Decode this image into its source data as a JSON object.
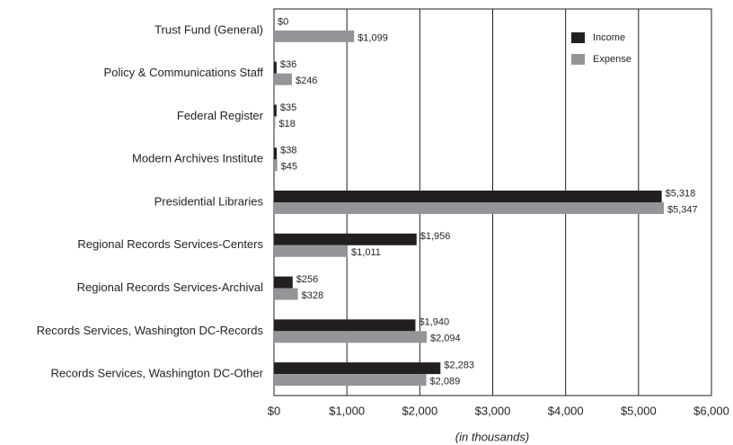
{
  "chart_data": {
    "type": "barh",
    "categories": [
      "Trust Fund (General)",
      "Policy & Communications Staff",
      "Federal Register",
      "Modern Archives Institute",
      "Presidential Libraries",
      "Regional Records Services-Centers",
      "Regional Records Services-Archival",
      "Records Services, Washington DC-Records",
      "Records Services, Washington DC-Other"
    ],
    "series": [
      {
        "name": "Income",
        "color": "#231f20",
        "values": [
          0,
          36,
          35,
          38,
          5318,
          1956,
          256,
          1940,
          2283
        ],
        "value_labels": [
          "$0",
          "$36",
          "$35",
          "$38",
          "$5,318",
          "$1,956",
          "$256",
          "$1,940",
          "$2,283"
        ]
      },
      {
        "name": "Expense",
        "color": "#939598",
        "values": [
          1099,
          246,
          18,
          45,
          5347,
          1011,
          328,
          2094,
          2089
        ],
        "value_labels": [
          "$1,099",
          "$246",
          "$18",
          "$45",
          "$5,347",
          "$1,011",
          "$328",
          "$2,094",
          "$2,089"
        ]
      }
    ],
    "xlabel": "(in thousands)",
    "xlim": [
      0,
      6000
    ],
    "xticks": [
      {
        "value": 0,
        "label": "$0"
      },
      {
        "value": 1000,
        "label": "$1,000"
      },
      {
        "value": 2000,
        "label": "$2,000"
      },
      {
        "value": 3000,
        "label": "$3,000"
      },
      {
        "value": 4000,
        "label": "$4,000"
      },
      {
        "value": 5000,
        "label": "$5,000"
      },
      {
        "value": 6000,
        "label": "$6,000"
      }
    ],
    "grid": true,
    "legend": "upper right"
  }
}
